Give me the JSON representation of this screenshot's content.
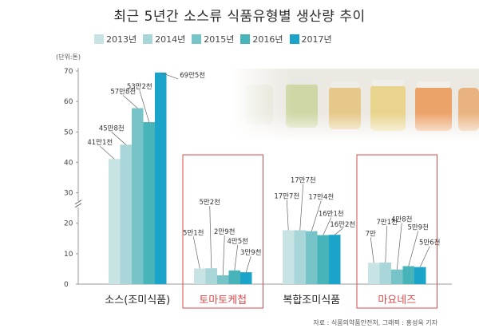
{
  "chart_data": {
    "type": "bar",
    "title": "최근 5년간 소스류 식품유형별 생산량 추이",
    "unit_label": "(단위:톤)",
    "source": "자료 : 식품의약품안전처, 그래픽 : 홍성욱 기자",
    "years": [
      "2013년",
      "2014년",
      "2015년",
      "2016년",
      "2017년"
    ],
    "colors": [
      "#c8e3e4",
      "#a9d6d9",
      "#77c4c8",
      "#47b4ba",
      "#1aa4c9"
    ],
    "ylim": [
      0,
      70
    ],
    "yticks": [
      0,
      10,
      20,
      30,
      40,
      50,
      60,
      70
    ],
    "axis_break": true,
    "groups": [
      {
        "category": "소스(조미식품)",
        "highlight": false,
        "values": [
          41.1,
          45.8,
          57.8,
          53.2,
          69.5
        ],
        "labels": [
          "41만1천",
          "45만8천",
          "57만8천",
          "53만2천",
          "69만5천"
        ]
      },
      {
        "category": "토마토케첩",
        "highlight": true,
        "values": [
          5.1,
          5.2,
          2.9,
          4.5,
          3.9
        ],
        "labels": [
          "5만1천",
          "5만2천",
          "2만9천",
          "4만5천",
          "3만9천"
        ]
      },
      {
        "category": "복합조미식품",
        "highlight": false,
        "values": [
          17.7,
          17.7,
          17.4,
          16.1,
          16.2
        ],
        "labels": [
          "17만7천",
          "17만7천",
          "17만4천",
          "16만1천",
          "16만2천"
        ]
      },
      {
        "category": "마요네즈",
        "highlight": true,
        "values": [
          7.0,
          7.1,
          4.8,
          5.9,
          5.6
        ],
        "labels": [
          "7만",
          "7만1천",
          "4만8천",
          "5만9천",
          "5만6천"
        ]
      }
    ]
  }
}
